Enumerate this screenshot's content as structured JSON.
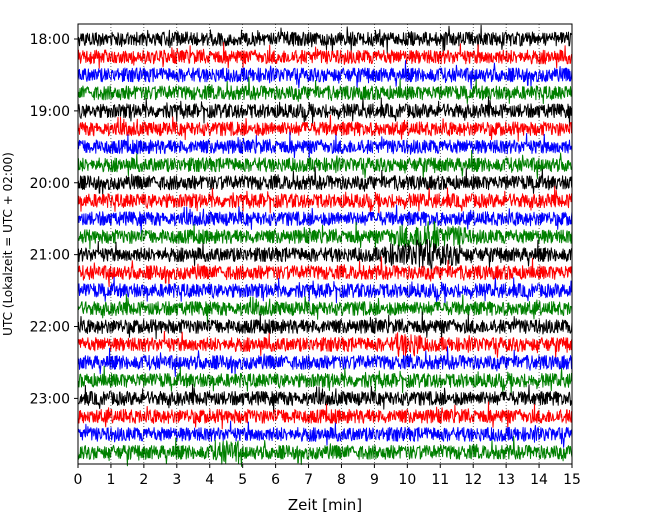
{
  "chart_data": {
    "type": "line",
    "title": "",
    "xlabel": "Zeit  [min]",
    "ylabel": "UTC (Lokalzeit = UTC + 02:00)",
    "xlim": [
      0,
      15
    ],
    "x_ticks": [
      "0",
      "1",
      "2",
      "3",
      "4",
      "5",
      "6",
      "7",
      "8",
      "9",
      "10",
      "11",
      "12",
      "13",
      "14",
      "15"
    ],
    "y_ticks": [
      {
        "hour": 18,
        "label": "18:00"
      },
      {
        "hour": 19,
        "label": "19:00"
      },
      {
        "hour": 20,
        "label": "20:00"
      },
      {
        "hour": 21,
        "label": "21:00"
      },
      {
        "hour": 22,
        "label": "22:00"
      },
      {
        "hour": 23,
        "label": "23:00"
      }
    ],
    "trace_interval_min": 15,
    "first_trace_start": "18:00",
    "trace_count": 24,
    "trace_colors": [
      "#000000",
      "#ff0000",
      "#0000ff",
      "#008000"
    ],
    "grid_x": true,
    "events": [
      {
        "trace_start": "20:45",
        "x_min": 10.6,
        "amplitude": "high"
      },
      {
        "trace_start": "21:00",
        "x_min": 10.5,
        "amplitude": "high"
      },
      {
        "trace_start": "22:15",
        "x_min": 10.0,
        "amplitude": "medium"
      },
      {
        "trace_start": "23:45",
        "x_min": 4.5,
        "amplitude": "medium"
      }
    ]
  }
}
